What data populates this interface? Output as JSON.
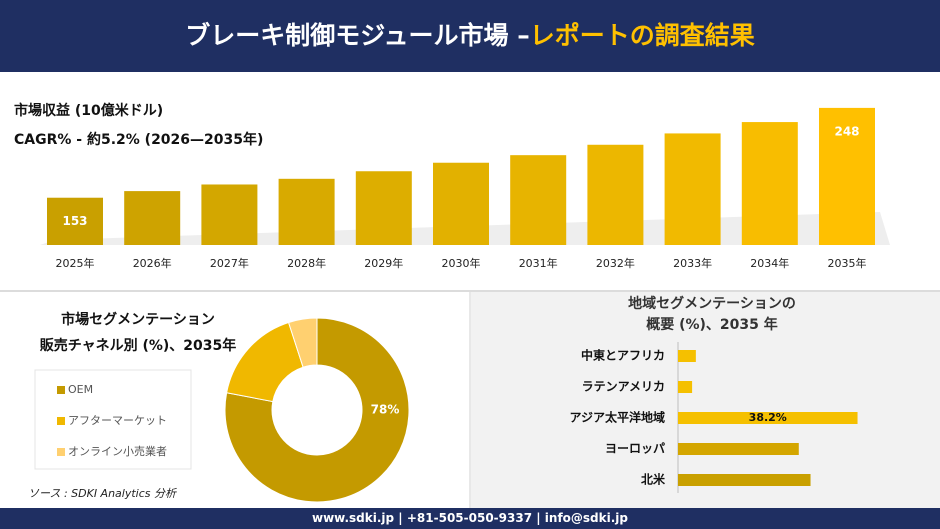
{
  "header": {
    "title": "ブレーキ制御モジュール市場 –",
    "highlight": "レポートの調査結果"
  },
  "source": "ソース : SDKI Analytics 分析",
  "footer": "www.sdki.jp | +81-505-050-9337 | info@sdki.jp",
  "chart_data": [
    {
      "type": "bar",
      "title": "市場収益 (10億米ドル)",
      "subtitle": "CAGR% - 約5.2% (2026—2035年)",
      "categories": [
        "2025年",
        "2026年",
        "2027年",
        "2028年",
        "2029年",
        "2030年",
        "2031年",
        "2032年",
        "2033年",
        "2034年",
        "2035年"
      ],
      "values": [
        153,
        160,
        167,
        173,
        181,
        190,
        198,
        209,
        221,
        233,
        248
      ],
      "value_labels": [
        "153",
        null,
        null,
        null,
        null,
        null,
        null,
        null,
        null,
        null,
        "248"
      ],
      "colors": [
        "#c9a000",
        "#cea300",
        "#d3a700",
        "#d8aa00",
        "#ddae00",
        "#e2b100",
        "#e7b400",
        "#ecb700",
        "#f1ba00",
        "#f8bd00",
        "#ffc000"
      ],
      "ylim": [
        103,
        250
      ]
    },
    {
      "type": "donut",
      "title": "市場セグメンテーション",
      "subtitle": "販売チャネル別 (%)、2035年",
      "categories": [
        "OEM",
        "アフターマーケット",
        "オンライン小売業者"
      ],
      "values": [
        78,
        17,
        5
      ],
      "value_labels": [
        "78%",
        null,
        null
      ],
      "colors": [
        "#c49a00",
        "#f0b800",
        "#ffd070"
      ]
    },
    {
      "type": "barh",
      "title": [
        "地域セグメンテーションの",
        "概要 (%)、2035 年"
      ],
      "categories": [
        "中東とアフリカ",
        "ラテンアメリカ",
        "アジア太平洋地域",
        "ヨーロッパ",
        "北米"
      ],
      "values": [
        3.8,
        3.0,
        38.2,
        25.7,
        28.2
      ],
      "value_labels": [
        null,
        null,
        "38.2%",
        null,
        null
      ],
      "colors": [
        "#f5c000",
        "#f5c000",
        "#f5c000",
        "#d4a600",
        "#c9a000"
      ],
      "xlim": [
        0,
        40
      ]
    }
  ]
}
